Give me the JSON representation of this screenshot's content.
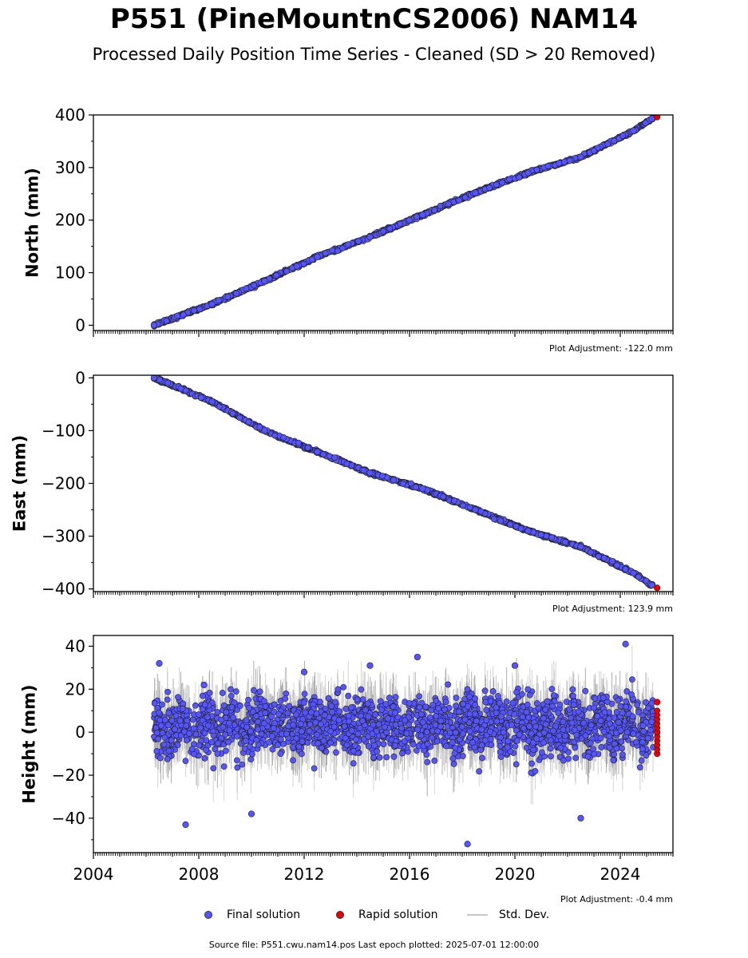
{
  "header": {
    "title": "P551 (PineMountnCS2006) NAM14",
    "subtitle": "Processed Daily Position Time Series - Cleaned (SD > 20 Removed)"
  },
  "legend": {
    "final_label": "Final solution",
    "rapid_label": "Rapid solution",
    "std_label": "Std. Dev.",
    "final_color": "#5555ff",
    "rapid_color": "#ee0000",
    "std_color": "#c8c8c8"
  },
  "footer": {
    "source_text": "Source file: P551.cwu.nam14.pos  Last epoch plotted: 2025-07-01 12:00:00"
  },
  "chart_data": [
    {
      "type": "scatter",
      "ylabel": "North (mm)",
      "xlim": [
        2004,
        2026
      ],
      "ylim": [
        -10,
        400
      ],
      "yticks": [
        0,
        100,
        200,
        300,
        400
      ],
      "yticklabels": [
        "0",
        "100",
        "200",
        "300",
        "400"
      ],
      "adjustment": "Plot Adjustment: -122.0 mm",
      "series": [
        {
          "kind": "final",
          "x": [
            2006.3,
            2008.5,
            2010.5,
            2012.5,
            2014.5,
            2016.5,
            2018.5,
            2020.5,
            2022.5,
            2024.5,
            2025.2
          ],
          "values": [
            0,
            40,
            84,
            130,
            168,
            210,
            252,
            290,
            320,
            370,
            393
          ]
        },
        {
          "kind": "rapid",
          "x": [
            2025.4
          ],
          "values": [
            396
          ]
        }
      ]
    },
    {
      "type": "scatter",
      "ylabel": "East (mm)",
      "xlim": [
        2004,
        2026
      ],
      "ylim": [
        -405,
        5
      ],
      "yticks": [
        0,
        -100,
        -200,
        -300,
        -400
      ],
      "yticklabels": [
        "0",
        "−100",
        "−200",
        "−300",
        "−400"
      ],
      "adjustment": "Plot Adjustment: 123.9 mm",
      "series": [
        {
          "kind": "final",
          "x": [
            2006.3,
            2008.5,
            2010.5,
            2012.5,
            2014.5,
            2016.5,
            2018.5,
            2020.5,
            2022.5,
            2024.5,
            2025.2
          ],
          "values": [
            0,
            -45,
            -100,
            -140,
            -180,
            -210,
            -250,
            -290,
            -320,
            -370,
            -393
          ]
        },
        {
          "kind": "rapid",
          "x": [
            2025.4
          ],
          "values": [
            -398
          ]
        }
      ]
    },
    {
      "type": "scatter",
      "ylabel": "Height (mm)",
      "xlim": [
        2004,
        2026
      ],
      "ylim": [
        -56,
        45
      ],
      "yticks": [
        40,
        20,
        0,
        -20,
        -40
      ],
      "yticklabels": [
        "40",
        "20",
        "0",
        "−20",
        "−40"
      ],
      "xticks": [
        2004,
        2008,
        2012,
        2016,
        2020,
        2024
      ],
      "xticklabels": [
        "2004",
        "2008",
        "2012",
        "2016",
        "2020",
        "2024"
      ],
      "adjustment": "Plot Adjustment: -0.4 mm",
      "series": [
        {
          "kind": "final",
          "x": [
            2006.5,
            2007.5,
            2008.2,
            2010,
            2012,
            2014.5,
            2016.3,
            2018.2,
            2020,
            2022.5,
            2024.2
          ],
          "values": [
            32,
            -43,
            22,
            -38,
            28,
            31,
            35,
            -52,
            31,
            -40,
            41
          ]
        },
        {
          "kind": "rapid",
          "x": [
            2025.4,
            2025.4,
            2025.4
          ],
          "values": [
            14,
            0,
            -10
          ]
        }
      ]
    }
  ]
}
